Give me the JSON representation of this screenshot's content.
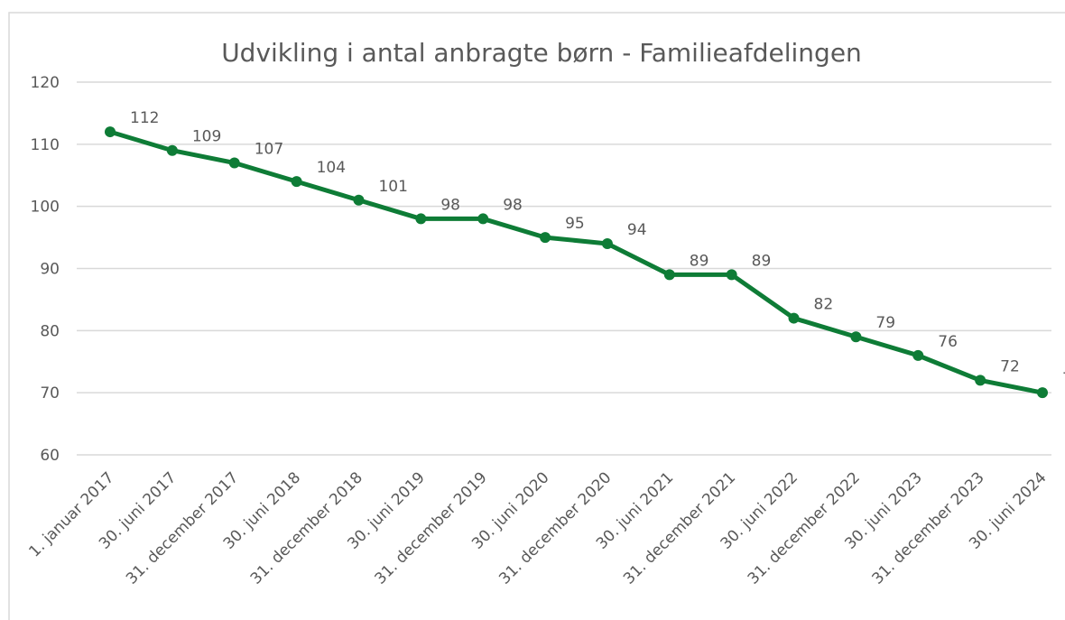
{
  "chart_data": {
    "type": "line",
    "title": "Udvikling i antal anbragte børn - Familieafdelingen",
    "categories": [
      "1. januar 2017",
      "30. juni 2017",
      "31. december 2017",
      "30. juni 2018",
      "31. december 2018",
      "30. juni 2019",
      "31. december 2019",
      "30. juni 2020",
      "31. december 2020",
      "30. juni 2021",
      "31. december 2021",
      "30. juni 2022",
      "31. december 2022",
      "30. juni 2023",
      "31. december 2023",
      "30. juni 2024"
    ],
    "values": [
      112,
      109,
      107,
      104,
      101,
      98,
      98,
      95,
      94,
      89,
      89,
      82,
      79,
      76,
      72,
      70
    ],
    "color": "#0e7c36",
    "ylim": [
      60,
      120
    ],
    "yticks": [
      60,
      70,
      80,
      90,
      100,
      110,
      120
    ],
    "grid": true
  }
}
